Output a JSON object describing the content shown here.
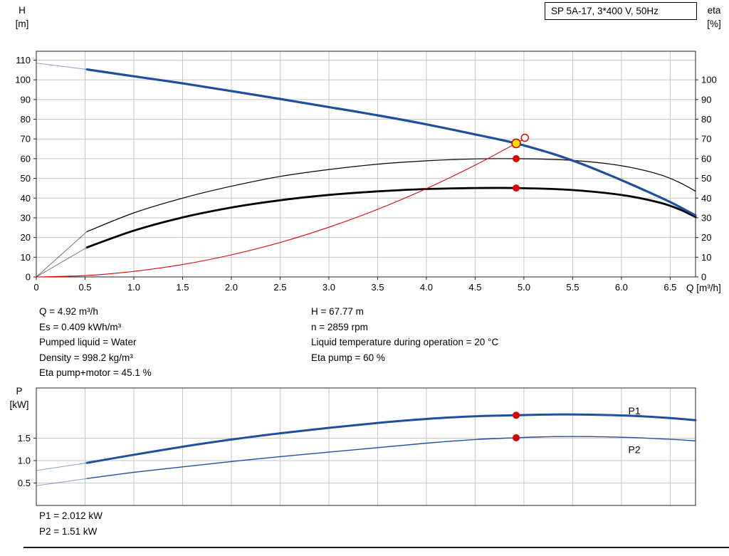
{
  "title_box": "SP 5A-17, 3*400 V, 50Hz",
  "labels": {
    "h": "H",
    "h_unit": "[m]",
    "eta": "eta",
    "eta_unit": "[%]",
    "q": "Q [m³/h]",
    "p": "P",
    "p_unit": "[kW]"
  },
  "info_block": {
    "left": [
      "Q = 4.92 m³/h",
      "Es = 0.409 kWh/m³",
      "Pumped liquid = Water",
      "Density = 998.2 kg/m³",
      "Eta pump+motor = 45.1 %"
    ],
    "right": [
      "H = 67.77 m",
      "n = 2859 rpm",
      "Liquid temperature during operation = 20 °C",
      "Eta pump = 60 %"
    ]
  },
  "power_block": [
    "P1 = 2.012 kW",
    "P2 = 1.51 kW"
  ],
  "colors": {
    "curve_blue": "#1d4f9e",
    "curve_black": "#000000",
    "curve_red": "#dd0000",
    "marker_yellow": "#ffdd00",
    "grid": "#c6c6c6",
    "frame": "#222222"
  },
  "chart_data": [
    {
      "type": "line",
      "title": "SP 5A-17, 3*400 V, 50Hz",
      "xlabel": "Q [m³/h]",
      "ylabel_left": "H [m]",
      "ylabel_right": "eta [%]",
      "xlim": [
        0,
        6.76
      ],
      "ylim": [
        0,
        114.5
      ],
      "x_tick_labels": [
        "0",
        "0.5",
        "1.0",
        "1.5",
        "2.0",
        "2.5",
        "3.0",
        "3.5",
        "4.0",
        "4.5",
        "5.0",
        "5.5",
        "6.0",
        "6.5"
      ],
      "y_tick_labels_left": [
        "0",
        "10",
        "20",
        "30",
        "40",
        "50",
        "60",
        "70",
        "80",
        "90",
        "100",
        "110"
      ],
      "y_tick_labels_right": [
        "0",
        "10",
        "20",
        "30",
        "40",
        "50",
        "60",
        "70",
        "80",
        "90",
        "100"
      ],
      "show_x_tick_labels": true,
      "series": [
        {
          "name": "eta-pump-curve",
          "color": "#000000",
          "width": 1.2,
          "lead": [
            [
              0,
              0
            ],
            [
              0.52,
              23
            ]
          ],
          "points": [
            [
              0.52,
              23
            ],
            [
              1.0,
              32.5
            ],
            [
              1.5,
              40.0
            ],
            [
              2.0,
              46.0
            ],
            [
              2.5,
              51.0
            ],
            [
              3.0,
              54.5
            ],
            [
              3.5,
              57.2
            ],
            [
              4.0,
              58.9
            ],
            [
              4.5,
              59.9
            ],
            [
              4.92,
              60.0
            ],
            [
              5.4,
              59.4
            ],
            [
              5.8,
              57.8
            ],
            [
              6.1,
              55.5
            ],
            [
              6.4,
              51.8
            ],
            [
              6.6,
              47.8
            ],
            [
              6.76,
              43.5
            ]
          ]
        },
        {
          "name": "eta-pump-motor-curve",
          "color": "#000000",
          "width": 2.8,
          "lead": [
            [
              0,
              0
            ],
            [
              0.52,
              15
            ]
          ],
          "points": [
            [
              0.52,
              15
            ],
            [
              1.0,
              23.5
            ],
            [
              1.5,
              30.2
            ],
            [
              2.0,
              35.2
            ],
            [
              2.5,
              38.9
            ],
            [
              3.0,
              41.6
            ],
            [
              3.5,
              43.4
            ],
            [
              4.0,
              44.6
            ],
            [
              4.5,
              45.1
            ],
            [
              4.92,
              45.1
            ],
            [
              5.4,
              44.4
            ],
            [
              5.8,
              42.8
            ],
            [
              6.1,
              40.8
            ],
            [
              6.4,
              37.6
            ],
            [
              6.6,
              34.2
            ],
            [
              6.76,
              30.4
            ]
          ]
        },
        {
          "name": "head-curve",
          "color": "#1d4f9e",
          "width": 3.2,
          "lead": [
            [
              0,
              108.5
            ],
            [
              0.52,
              105.3
            ]
          ],
          "points": [
            [
              0.52,
              105.3
            ],
            [
              1.0,
              101.8
            ],
            [
              1.5,
              98.2
            ],
            [
              2.0,
              94.3
            ],
            [
              2.5,
              90.3
            ],
            [
              3.0,
              86.2
            ],
            [
              3.5,
              82.0
            ],
            [
              4.0,
              77.4
            ],
            [
              4.5,
              72.3
            ],
            [
              4.92,
              67.77
            ],
            [
              5.3,
              62.4
            ],
            [
              5.6,
              57.2
            ],
            [
              5.9,
              51.2
            ],
            [
              6.2,
              44.8
            ],
            [
              6.5,
              38.0
            ],
            [
              6.76,
              31.2
            ]
          ]
        },
        {
          "name": "system-curve",
          "color": "#dd0000",
          "width": 1.1,
          "points": [
            [
              0,
              0
            ],
            [
              0.5,
              0.7
            ],
            [
              1.0,
              2.8
            ],
            [
              1.5,
              6.3
            ],
            [
              2.0,
              11.2
            ],
            [
              2.5,
              17.5
            ],
            [
              3.0,
              25.2
            ],
            [
              3.5,
              34.3
            ],
            [
              4.0,
              44.8
            ],
            [
              4.5,
              56.7
            ],
            [
              4.92,
              67.8
            ],
            [
              5.01,
              70.3
            ]
          ]
        }
      ],
      "markers": [
        {
          "name": "requested-duty-point",
          "x": 5.01,
          "y": 70.6,
          "style": "open"
        },
        {
          "name": "duty-point",
          "x": 4.92,
          "y": 67.77,
          "style": "duty"
        },
        {
          "name": "eta-pump-point",
          "x": 4.92,
          "y": 60,
          "style": "dot"
        },
        {
          "name": "eta-pump-motor-point",
          "x": 4.92,
          "y": 45.1,
          "style": "dot"
        }
      ],
      "annotations": []
    },
    {
      "type": "line",
      "title": "",
      "xlabel": "",
      "ylabel_left": "P [kW]",
      "xlim": [
        0,
        6.76
      ],
      "ylim": [
        0,
        2.62
      ],
      "x_tick_labels": [
        "0",
        "0.5",
        "1.0",
        "1.5",
        "2.0",
        "2.5",
        "3.0",
        "3.5",
        "4.0",
        "4.5",
        "5.0",
        "5.5",
        "6.0",
        "6.5"
      ],
      "y_tick_labels_left": [
        "0.5",
        "1.0",
        "1.5"
      ],
      "y_tick_labels_right": [],
      "show_x_tick_labels": false,
      "series": [
        {
          "name": "p1-curve",
          "color": "#1d4f9e",
          "width": 3.0,
          "lead": [
            [
              0,
              0.78
            ],
            [
              0.52,
              0.95
            ]
          ],
          "points": [
            [
              0.52,
              0.95
            ],
            [
              1.0,
              1.13
            ],
            [
              1.5,
              1.31
            ],
            [
              2.0,
              1.47
            ],
            [
              2.5,
              1.61
            ],
            [
              3.0,
              1.73
            ],
            [
              3.5,
              1.84
            ],
            [
              4.0,
              1.93
            ],
            [
              4.5,
              1.99
            ],
            [
              4.92,
              2.012
            ],
            [
              5.3,
              2.03
            ],
            [
              5.7,
              2.025
            ],
            [
              6.1,
              2.0
            ],
            [
              6.5,
              1.95
            ],
            [
              6.76,
              1.9
            ]
          ]
        },
        {
          "name": "p2-curve",
          "color": "#1d4f9e",
          "width": 1.4,
          "lead": [
            [
              0,
              0.44
            ],
            [
              0.52,
              0.6
            ]
          ],
          "points": [
            [
              0.52,
              0.6
            ],
            [
              1.0,
              0.74
            ],
            [
              1.5,
              0.86
            ],
            [
              2.0,
              0.98
            ],
            [
              2.5,
              1.09
            ],
            [
              3.0,
              1.19
            ],
            [
              3.5,
              1.29
            ],
            [
              4.0,
              1.39
            ],
            [
              4.5,
              1.47
            ],
            [
              4.92,
              1.51
            ],
            [
              5.3,
              1.535
            ],
            [
              5.7,
              1.535
            ],
            [
              6.1,
              1.515
            ],
            [
              6.5,
              1.475
            ],
            [
              6.76,
              1.44
            ]
          ]
        }
      ],
      "markers": [
        {
          "name": "p1-point",
          "x": 4.92,
          "y": 2.012,
          "style": "dot"
        },
        {
          "name": "p2-point",
          "x": 4.92,
          "y": 1.51,
          "style": "dot"
        }
      ],
      "annotations": [
        {
          "name": "p1-label",
          "text": "P1",
          "x": 6.07,
          "y": 2.11
        },
        {
          "name": "p2-label",
          "text": "P2",
          "x": 6.07,
          "y": 1.25
        }
      ]
    }
  ]
}
